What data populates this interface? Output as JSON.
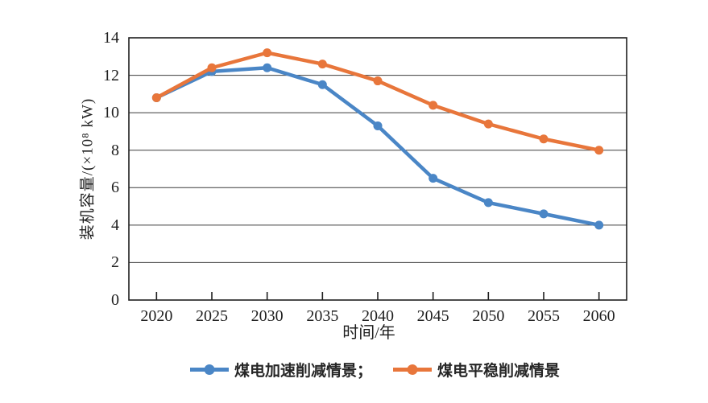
{
  "chart_data": {
    "type": "line",
    "title": "",
    "xlabel": "时间/年",
    "ylabel": "装机容量/(×10⁸ kW)",
    "categories": [
      "2020",
      "2025",
      "2030",
      "2035",
      "2040",
      "2045",
      "2050",
      "2055",
      "2060"
    ],
    "yticks": [
      0,
      2,
      4,
      6,
      8,
      10,
      12,
      14
    ],
    "ylim": [
      0,
      14
    ],
    "grid": true,
    "legend_position": "bottom-center",
    "background": "#ffffff",
    "axis_color": "#1f1f1f",
    "grid_color": "#3c3c3c",
    "series": [
      {
        "name": "煤电加速削减情景；",
        "color": "#4A86C6",
        "values": [
          10.8,
          12.2,
          12.4,
          11.5,
          9.3,
          6.5,
          5.2,
          4.6,
          4.0
        ]
      },
      {
        "name": "煤电平稳削减情景",
        "color": "#E8763B",
        "values": [
          10.8,
          12.4,
          13.2,
          12.6,
          11.7,
          10.4,
          9.4,
          8.6,
          8.0
        ]
      }
    ]
  }
}
